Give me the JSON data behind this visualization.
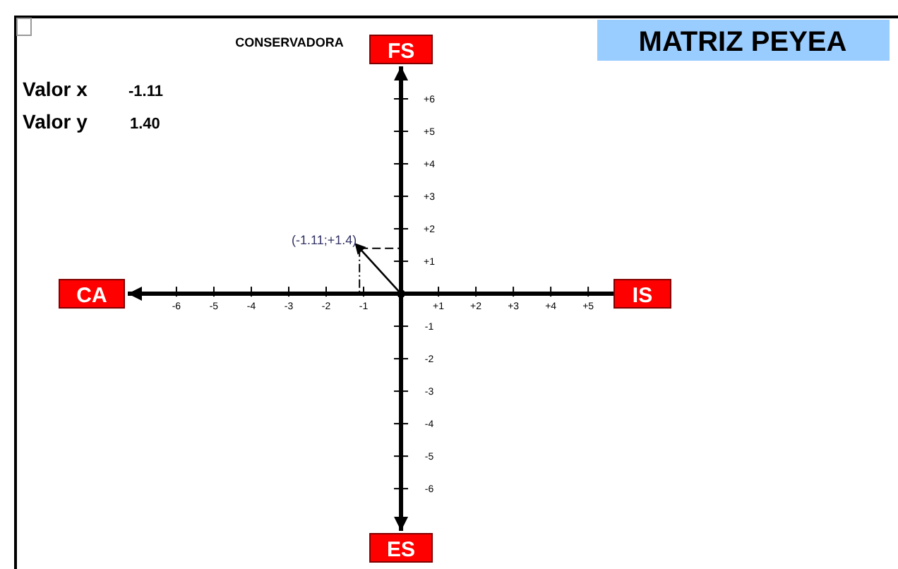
{
  "chart_data": {
    "type": "scatter",
    "title": "MATRIZ PEYEA",
    "x": [
      -1.11
    ],
    "values": [
      1.4
    ],
    "value_labels": [
      "(-1.11;+1.4)"
    ],
    "color": "#000000",
    "marker": "triangle",
    "xlim": [
      -7.3,
      6.6
    ],
    "ylim": [
      -7.3,
      7
    ],
    "xticks": [
      -6,
      -5,
      -4,
      -3,
      -2,
      -1,
      {
        "value": 1,
        "label": "+1"
      },
      {
        "value": 2,
        "label": "+2"
      },
      {
        "value": 3,
        "label": "+3"
      },
      {
        "value": 4,
        "label": "+4"
      },
      {
        "value": 5,
        "label": "+5"
      },
      {
        "value": 6,
        "label": null
      }
    ],
    "yticks": [
      -6,
      -5,
      -4,
      -3,
      -2,
      -1,
      {
        "value": 1,
        "label": "+1"
      },
      {
        "value": 2,
        "label": "+2"
      },
      {
        "value": 3,
        "label": "+3"
      },
      {
        "value": 4,
        "label": "+4"
      },
      {
        "value": 5,
        "label": "+5"
      },
      {
        "value": 6,
        "label": "+6"
      }
    ],
    "grid": false,
    "legend": false,
    "annotations": [
      "CONSERVADORA",
      "FS",
      "IS",
      "ES",
      "CA",
      "Valor x",
      "-1.11",
      "Valor y",
      "1.40"
    ]
  }
}
